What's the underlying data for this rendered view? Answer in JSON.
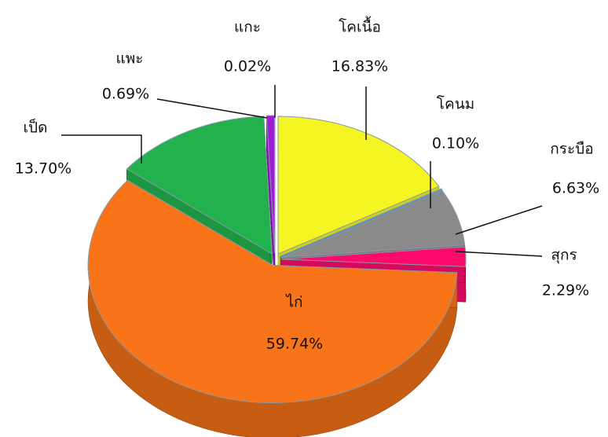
{
  "chart_data": {
    "type": "pie",
    "categories": [
      "โคเนื้อ",
      "โคนม",
      "กระบือ",
      "สุกร",
      "ไก่",
      "เป็ด",
      "แพะ",
      "แกะ"
    ],
    "values": [
      16.83,
      0.1,
      6.63,
      2.29,
      59.74,
      13.7,
      0.69,
      0.02
    ],
    "value_labels": [
      "16.83%",
      "0.10%",
      "6.63%",
      "2.29%",
      "59.74%",
      "13.70%",
      "0.69%",
      "0.02%"
    ],
    "colors": [
      "#f5f524",
      "#1fa6df",
      "#8a8a8a",
      "#fb0c6c",
      "#f97418",
      "#22b14c",
      "#9b1fd0",
      "#7d3cff"
    ]
  }
}
